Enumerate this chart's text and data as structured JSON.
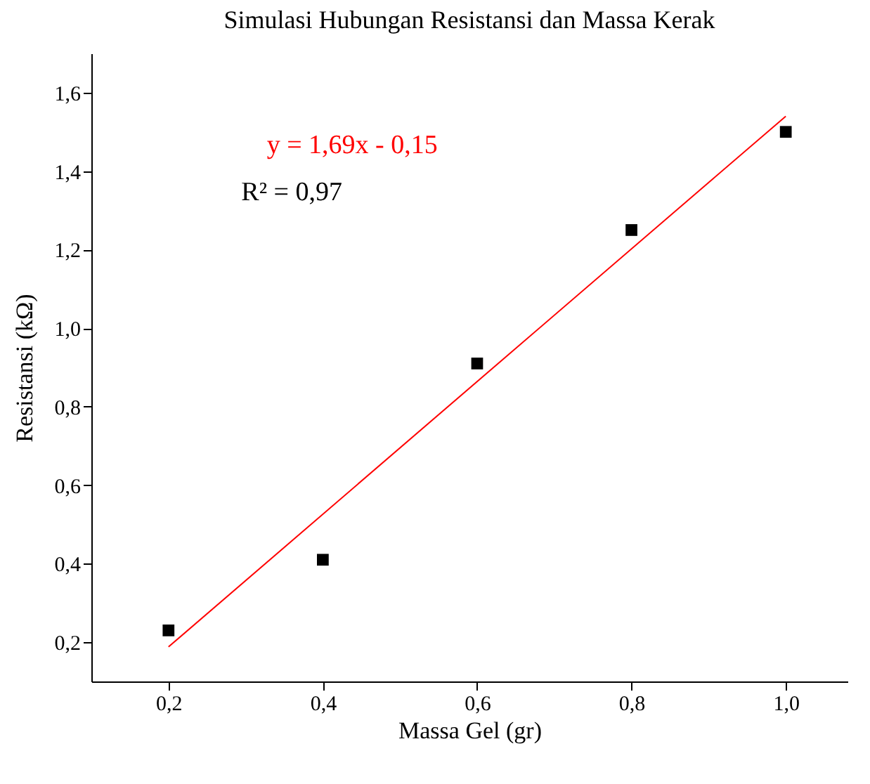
{
  "chart_data": {
    "type": "scatter",
    "title": "Simulasi Hubungan Resistansi dan Massa Kerak",
    "xlabel": "Massa Gel (gr)",
    "ylabel": "Resistansi (kΩ)",
    "series": [
      {
        "color": "#000000",
        "x": [
          0.2,
          0.4,
          0.6,
          0.8,
          1.0
        ],
        "values": [
          0.23,
          0.41,
          0.91,
          1.25,
          1.5
        ],
        "marker": "square"
      },
      {
        "type": "line",
        "color": "#ff0000",
        "x": [
          0.2,
          1.0
        ],
        "values": [
          0.188,
          1.54
        ],
        "marker": "none"
      }
    ],
    "annotations": [
      "y = 1,69x - 0,15",
      "R² = 0,97"
    ],
    "xlim": [
      0.1,
      1.08
    ],
    "ylim": [
      0.1,
      1.7
    ],
    "xticks": [
      {
        "value": 0.2,
        "label": "0,2"
      },
      {
        "value": 0.4,
        "label": "0,4"
      },
      {
        "value": 0.6,
        "label": "0,6"
      },
      {
        "value": 0.8,
        "label": "0,8"
      },
      {
        "value": 1.0,
        "label": "1,0"
      }
    ],
    "yticks": [
      {
        "value": 0.2,
        "label": "0,2"
      },
      {
        "value": 0.4,
        "label": "0,4"
      },
      {
        "value": 0.6,
        "label": "0,6"
      },
      {
        "value": 0.8,
        "label": "0,8"
      },
      {
        "value": 1.0,
        "label": "1,0"
      },
      {
        "value": 1.2,
        "label": "1,2"
      },
      {
        "value": 1.4,
        "label": "1,4"
      },
      {
        "value": 1.6,
        "label": "1,6"
      }
    ],
    "grid": false
  }
}
